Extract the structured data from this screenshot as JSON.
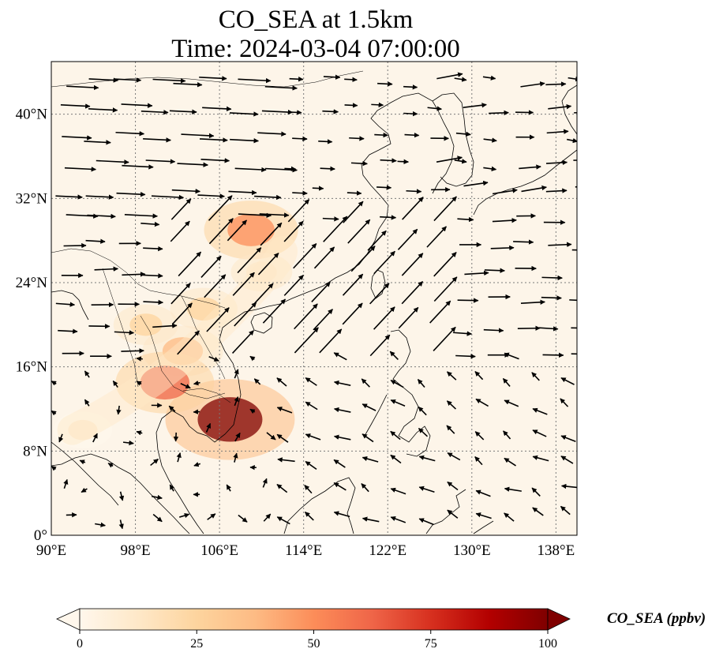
{
  "title": {
    "line1": "CO_SEA at 1.5km",
    "line2": "Time: 2024-03-04 07:00:00"
  },
  "map": {
    "projection": "PlateCarree",
    "lon_range": [
      90,
      140
    ],
    "lat_range": [
      0,
      45
    ],
    "gridlines": "dotted",
    "lon_ticks": [
      {
        "value": 90,
        "label": "90°E"
      },
      {
        "value": 98,
        "label": "98°E"
      },
      {
        "value": 106,
        "label": "106°E"
      },
      {
        "value": 114,
        "label": "114°E"
      },
      {
        "value": 122,
        "label": "122°E"
      },
      {
        "value": 130,
        "label": "130°E"
      },
      {
        "value": 138,
        "label": "138°E"
      }
    ],
    "lat_ticks": [
      {
        "value": 0,
        "label": "0°"
      },
      {
        "value": 8,
        "label": "8°N"
      },
      {
        "value": 16,
        "label": "16°N"
      },
      {
        "value": 24,
        "label": "24°N"
      },
      {
        "value": 32,
        "label": "32°N"
      },
      {
        "value": 40,
        "label": "40°N"
      }
    ],
    "field_hotspots": [
      {
        "lon": 107.0,
        "lat": 11.0,
        "value": 95
      },
      {
        "lon": 109.0,
        "lat": 29.0,
        "value": 55
      },
      {
        "lon": 102.5,
        "lat": 17.5,
        "value": 40
      },
      {
        "lon": 100.8,
        "lat": 14.5,
        "value": 60
      },
      {
        "lon": 99.0,
        "lat": 20.0,
        "value": 22
      },
      {
        "lon": 104.5,
        "lat": 21.5,
        "value": 25
      },
      {
        "lon": 93.0,
        "lat": 10.0,
        "value": 15
      },
      {
        "lon": 110.0,
        "lat": 25.0,
        "value": 18
      }
    ],
    "wind_field_description": "quiver arrows, strong southwesterly flow over southern China",
    "colors": {
      "background": "#fdf5e9",
      "coastline": "#000000",
      "arrow": "#000000",
      "grid": "#7a7a7a"
    }
  },
  "colorbar": {
    "label": "CO_SEA (ppbv)",
    "ticks": [
      {
        "value": 0,
        "label": "0"
      },
      {
        "value": 25,
        "label": "25"
      },
      {
        "value": 50,
        "label": "50"
      },
      {
        "value": 75,
        "label": "75"
      },
      {
        "value": 100,
        "label": "100"
      }
    ],
    "range": [
      0,
      100
    ],
    "extend": "both",
    "colormap": "OrRd",
    "stops": [
      "#fff7ec",
      "#fee8c8",
      "#fdd49e",
      "#fdbb84",
      "#fc8d59",
      "#ef6548",
      "#d7301f",
      "#b30000",
      "#7f0000"
    ]
  }
}
